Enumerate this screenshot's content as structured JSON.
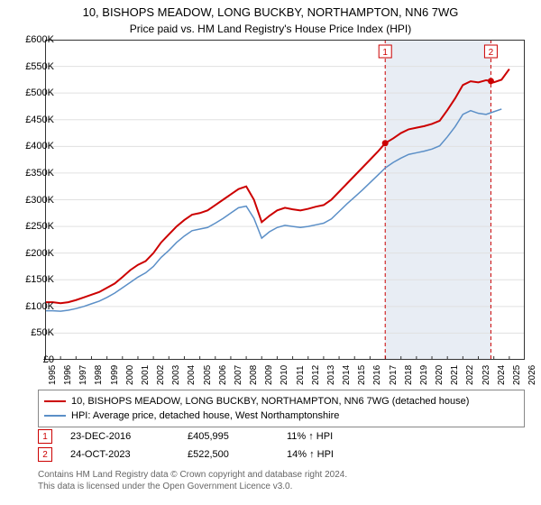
{
  "title": "10, BISHOPS MEADOW, LONG BUCKBY, NORTHAMPTON, NN6 7WG",
  "subtitle": "Price paid vs. HM Land Registry's House Price Index (HPI)",
  "chart": {
    "type": "line",
    "background_color": "#ffffff",
    "plot_border_color": "#333333",
    "grid_color": "#e0e0e0",
    "shaded_region_color": "#e8edf4",
    "shaded_region_x": [
      2016.98,
      2023.81
    ],
    "xlim": [
      1995,
      2026
    ],
    "ylim": [
      0,
      600000
    ],
    "x_ticks": [
      1995,
      1996,
      1997,
      1998,
      1999,
      2000,
      2001,
      2002,
      2003,
      2004,
      2005,
      2006,
      2007,
      2008,
      2009,
      2010,
      2011,
      2012,
      2013,
      2014,
      2015,
      2016,
      2017,
      2018,
      2019,
      2020,
      2021,
      2022,
      2023,
      2024,
      2025,
      2026
    ],
    "y_ticks": [
      0,
      50000,
      100000,
      150000,
      200000,
      250000,
      300000,
      350000,
      400000,
      450000,
      500000,
      550000,
      600000
    ],
    "y_tick_labels": [
      "£0",
      "£50K",
      "£100K",
      "£150K",
      "£200K",
      "£250K",
      "£300K",
      "£350K",
      "£400K",
      "£450K",
      "£500K",
      "£550K",
      "£600K"
    ],
    "tick_fontsize": 11,
    "title_fontsize": 13,
    "series": [
      {
        "name": "property",
        "label": "10, BISHOPS MEADOW, LONG BUCKBY, NORTHAMPTON, NN6 7WG (detached house)",
        "color": "#cc0000",
        "line_width": 2,
        "x": [
          1995,
          1995.5,
          1996,
          1996.5,
          1997,
          1997.5,
          1998,
          1998.5,
          1999,
          1999.5,
          2000,
          2000.5,
          2001,
          2001.5,
          2002,
          2002.5,
          2003,
          2003.5,
          2004,
          2004.5,
          2005,
          2005.5,
          2006,
          2006.5,
          2007,
          2007.5,
          2008,
          2008.5,
          2009,
          2009.5,
          2010,
          2010.5,
          2011,
          2011.5,
          2012,
          2012.5,
          2013,
          2013.5,
          2014,
          2014.5,
          2015,
          2015.5,
          2016,
          2016.5,
          2016.98,
          2017.5,
          2018,
          2018.5,
          2019,
          2019.5,
          2020,
          2020.5,
          2021,
          2021.5,
          2022,
          2022.5,
          2023,
          2023.5,
          2023.81,
          2024,
          2024.5,
          2025
        ],
        "y": [
          108000,
          108000,
          106000,
          108000,
          112000,
          117000,
          122000,
          127000,
          135000,
          143000,
          155000,
          168000,
          178000,
          185000,
          200000,
          220000,
          235000,
          250000,
          262000,
          272000,
          275000,
          280000,
          290000,
          300000,
          310000,
          320000,
          325000,
          300000,
          258000,
          270000,
          280000,
          285000,
          282000,
          280000,
          283000,
          287000,
          290000,
          300000,
          315000,
          330000,
          345000,
          360000,
          375000,
          390000,
          405995,
          415000,
          425000,
          432000,
          435000,
          438000,
          442000,
          448000,
          468000,
          490000,
          515000,
          522000,
          520000,
          524000,
          522500,
          520000,
          525000,
          545000
        ]
      },
      {
        "name": "hpi",
        "label": "HPI: Average price, detached house, West Northamptonshire",
        "color": "#5b8fc7",
        "line_width": 1.5,
        "x": [
          1995,
          1995.5,
          1996,
          1996.5,
          1997,
          1997.5,
          1998,
          1998.5,
          1999,
          1999.5,
          2000,
          2000.5,
          2001,
          2001.5,
          2002,
          2002.5,
          2003,
          2003.5,
          2004,
          2004.5,
          2005,
          2005.5,
          2006,
          2006.5,
          2007,
          2007.5,
          2008,
          2008.5,
          2009,
          2009.5,
          2010,
          2010.5,
          2011,
          2011.5,
          2012,
          2012.5,
          2013,
          2013.5,
          2014,
          2014.5,
          2015,
          2015.5,
          2016,
          2016.5,
          2017,
          2017.5,
          2018,
          2018.5,
          2019,
          2019.5,
          2020,
          2020.5,
          2021,
          2021.5,
          2022,
          2022.5,
          2023,
          2023.5,
          2024,
          2024.5
        ],
        "y": [
          92000,
          92000,
          91000,
          93000,
          96000,
          100000,
          105000,
          110000,
          117000,
          125000,
          135000,
          145000,
          155000,
          163000,
          175000,
          192000,
          205000,
          220000,
          232000,
          242000,
          245000,
          248000,
          256000,
          265000,
          275000,
          285000,
          288000,
          265000,
          228000,
          240000,
          248000,
          252000,
          250000,
          248000,
          250000,
          253000,
          256000,
          264000,
          278000,
          292000,
          305000,
          318000,
          332000,
          346000,
          360000,
          370000,
          378000,
          385000,
          388000,
          391000,
          395000,
          401000,
          418000,
          437000,
          460000,
          467000,
          462000,
          460000,
          465000,
          470000
        ]
      }
    ],
    "marker_line_color": "#cc0000",
    "marker_line_dash": "4,3",
    "markers": [
      {
        "id": "1",
        "x": 2016.98,
        "y": 405995,
        "badge_color": "#cc0000"
      },
      {
        "id": "2",
        "x": 2023.81,
        "y": 522500,
        "badge_color": "#cc0000"
      }
    ]
  },
  "legend": {
    "border_color": "#888888",
    "items": [
      {
        "color": "#cc0000",
        "label": "10, BISHOPS MEADOW, LONG BUCKBY, NORTHAMPTON, NN6 7WG (detached house)"
      },
      {
        "color": "#5b8fc7",
        "label": "HPI: Average price, detached house, West Northamptonshire"
      }
    ]
  },
  "marker_table": [
    {
      "id": "1",
      "badge_color": "#cc0000",
      "date": "23-DEC-2016",
      "price": "£405,995",
      "delta": "11% ↑ HPI"
    },
    {
      "id": "2",
      "badge_color": "#cc0000",
      "date": "24-OCT-2023",
      "price": "£522,500",
      "delta": "14% ↑ HPI"
    }
  ],
  "footer_line1": "Contains HM Land Registry data © Crown copyright and database right 2024.",
  "footer_line2": "This data is licensed under the Open Government Licence v3.0."
}
